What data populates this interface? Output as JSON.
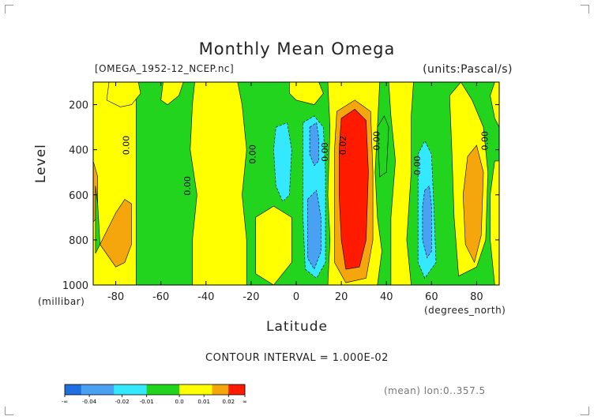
{
  "title": "Monthly Mean Omega",
  "file_label": "[OMEGA_1952-12_NCEP.nc]",
  "units_label": "(units:Pascal/s)",
  "contour_interval": "CONTOUR INTERVAL = 1.000E-02",
  "mean_note": "(mean) lon:0..357.5",
  "chart_data": {
    "type": "heatmap",
    "title": "Monthly Mean Omega",
    "xlabel": "Latitude",
    "xunit": "(degrees_north)",
    "ylabel": "Level",
    "yunit": "(millibar)",
    "xlim": [
      -90,
      90
    ],
    "ylim": [
      1000,
      100
    ],
    "x_ticks": [
      -80,
      -60,
      -40,
      -20,
      0,
      20,
      40,
      60,
      80
    ],
    "y_ticks": [
      200,
      400,
      600,
      800,
      1000
    ],
    "colors": {
      "c1": "#1f6fe0",
      "c2": "#4aa0f2",
      "c3": "#33e8ff",
      "c4": "#22d41e",
      "c5": "#ffff00",
      "c6": "#f5a60d",
      "c7": "#ff1a00"
    },
    "colorbar": {
      "tick_labels": [
        "-∞",
        "-0.04",
        "-0.02",
        "-0.01",
        "0.0",
        "0.01",
        "0.02",
        "∞"
      ],
      "bins": [
        "c1",
        "c2",
        "c2",
        "c3",
        "c3",
        "c4",
        "c4",
        "c5",
        "c5",
        "c6",
        "c7"
      ]
    },
    "contour_labels": [
      {
        "text": "0.00",
        "lat": -74,
        "level": 380
      },
      {
        "text": "0.00",
        "lat": -47,
        "level": 560
      },
      {
        "text": "0.00",
        "lat": -18,
        "level": 420
      },
      {
        "text": "0.00",
        "lat": 14,
        "level": 410
      },
      {
        "text": "0.02",
        "lat": 22,
        "level": 380
      },
      {
        "text": "0.00",
        "lat": 37,
        "level": 360
      },
      {
        "text": "0.00",
        "lat": 55,
        "level": 470
      },
      {
        "text": "0.00",
        "lat": 85,
        "level": 360
      }
    ],
    "regions": [
      {
        "color": "c4",
        "pts": [
          [
            -90,
            100
          ],
          [
            90,
            100
          ],
          [
            90,
            1000
          ],
          [
            -90,
            1000
          ]
        ]
      },
      {
        "color": "c5",
        "pts": [
          [
            -90,
            100
          ],
          [
            -71,
            100
          ],
          [
            -71,
            1000
          ],
          [
            -90,
            1000
          ]
        ]
      },
      {
        "color": "c5",
        "pts": [
          [
            -83,
            100
          ],
          [
            -70,
            100
          ],
          [
            -69,
            150
          ],
          [
            -73,
            200
          ],
          [
            -78,
            210
          ],
          [
            -84,
            180
          ]
        ]
      },
      {
        "color": "c6",
        "pts": [
          [
            -90,
            450
          ],
          [
            -88,
            520
          ],
          [
            -88,
            700
          ],
          [
            -90,
            720
          ]
        ]
      },
      {
        "color": "c6",
        "pts": [
          [
            -87,
            820
          ],
          [
            -80,
            680
          ],
          [
            -76,
            620
          ],
          [
            -73,
            640
          ],
          [
            -73,
            820
          ],
          [
            -76,
            900
          ],
          [
            -80,
            920
          ]
        ]
      },
      {
        "color": "c4",
        "pts": [
          [
            -89,
            560
          ],
          [
            -88,
            640
          ],
          [
            -87,
            820
          ],
          [
            -89,
            860
          ]
        ]
      },
      {
        "color": "c5",
        "pts": [
          [
            -59,
            100
          ],
          [
            -50,
            100
          ],
          [
            -52,
            160
          ],
          [
            -57,
            200
          ],
          [
            -60,
            180
          ]
        ]
      },
      {
        "color": "c5",
        "pts": [
          [
            -45,
            100
          ],
          [
            -26,
            100
          ],
          [
            -24,
            200
          ],
          [
            -22,
            400
          ],
          [
            -24,
            600
          ],
          [
            -22,
            800
          ],
          [
            -22,
            1000
          ],
          [
            -46,
            1000
          ],
          [
            -46,
            800
          ],
          [
            -44,
            600
          ],
          [
            -47,
            400
          ],
          [
            -46,
            200
          ]
        ]
      },
      {
        "color": "c5",
        "pts": [
          [
            -18,
            700
          ],
          [
            -10,
            650
          ],
          [
            -2,
            700
          ],
          [
            -2,
            900
          ],
          [
            -10,
            1000
          ],
          [
            -18,
            950
          ]
        ]
      },
      {
        "color": "c3",
        "pts": [
          [
            -9,
            300
          ],
          [
            -4,
            280
          ],
          [
            -2,
            400
          ],
          [
            -3,
            600
          ],
          [
            -6,
            630
          ],
          [
            -9,
            560
          ],
          [
            -10,
            400
          ]
        ]
      },
      {
        "color": "c5",
        "pts": [
          [
            -3,
            100
          ],
          [
            10,
            100
          ],
          [
            12,
            150
          ],
          [
            8,
            200
          ],
          [
            0,
            180
          ],
          [
            -3,
            150
          ]
        ]
      },
      {
        "color": "c3",
        "pts": [
          [
            3,
            280
          ],
          [
            8,
            250
          ],
          [
            12,
            300
          ],
          [
            13,
            500
          ],
          [
            13,
            700
          ],
          [
            13,
            900
          ],
          [
            9,
            970
          ],
          [
            4,
            930
          ],
          [
            3,
            700
          ],
          [
            3,
            500
          ]
        ]
      },
      {
        "color": "c2",
        "pts": [
          [
            6,
            300
          ],
          [
            9,
            280
          ],
          [
            10,
            350
          ],
          [
            10,
            450
          ],
          [
            8,
            470
          ],
          [
            6,
            420
          ]
        ]
      },
      {
        "color": "c2",
        "pts": [
          [
            5,
            620
          ],
          [
            9,
            580
          ],
          [
            11,
            700
          ],
          [
            11,
            850
          ],
          [
            8,
            930
          ],
          [
            5,
            880
          ]
        ]
      },
      {
        "color": "c5",
        "pts": [
          [
            14,
            100
          ],
          [
            37,
            100
          ],
          [
            36,
            300
          ],
          [
            35,
            500
          ],
          [
            36,
            700
          ],
          [
            38,
            850
          ],
          [
            36,
            1000
          ],
          [
            14,
            1000
          ],
          [
            15,
            800
          ],
          [
            14,
            600
          ],
          [
            15,
            300
          ]
        ]
      },
      {
        "color": "c6",
        "pts": [
          [
            18,
            230
          ],
          [
            26,
            180
          ],
          [
            33,
            230
          ],
          [
            34,
            500
          ],
          [
            34,
            800
          ],
          [
            31,
            970
          ],
          [
            22,
            990
          ],
          [
            17,
            900
          ],
          [
            17,
            600
          ],
          [
            17,
            400
          ]
        ]
      },
      {
        "color": "c7",
        "pts": [
          [
            20,
            260
          ],
          [
            26,
            220
          ],
          [
            31,
            270
          ],
          [
            32,
            500
          ],
          [
            31,
            800
          ],
          [
            28,
            920
          ],
          [
            22,
            930
          ],
          [
            20,
            800
          ],
          [
            19,
            600
          ],
          [
            19,
            400
          ]
        ]
      },
      {
        "color": "c4",
        "pts": [
          [
            36,
            300
          ],
          [
            39,
            250
          ],
          [
            41,
            300
          ],
          [
            40,
            500
          ],
          [
            37,
            520
          ]
        ]
      },
      {
        "color": "c5",
        "pts": [
          [
            41,
            100
          ],
          [
            52,
            100
          ],
          [
            51,
            250
          ],
          [
            51,
            500
          ],
          [
            49,
            800
          ],
          [
            51,
            1000
          ],
          [
            42,
            1000
          ],
          [
            42,
            700
          ],
          [
            44,
            450
          ],
          [
            42,
            250
          ]
        ]
      },
      {
        "color": "c3",
        "pts": [
          [
            54,
            420
          ],
          [
            57,
            360
          ],
          [
            60,
            420
          ],
          [
            61,
            650
          ],
          [
            62,
            900
          ],
          [
            57,
            970
          ],
          [
            54,
            900
          ],
          [
            54,
            650
          ]
        ]
      },
      {
        "color": "c2",
        "pts": [
          [
            57,
            580
          ],
          [
            59,
            560
          ],
          [
            60,
            650
          ],
          [
            60,
            850
          ],
          [
            58,
            880
          ],
          [
            56,
            800
          ],
          [
            56,
            650
          ]
        ]
      },
      {
        "color": "c5",
        "pts": [
          [
            73,
            100
          ],
          [
            78,
            180
          ],
          [
            83,
            300
          ],
          [
            85,
            500
          ],
          [
            84,
            800
          ],
          [
            80,
            920
          ],
          [
            72,
            960
          ],
          [
            70,
            700
          ],
          [
            69,
            400
          ],
          [
            68,
            160
          ]
        ]
      },
      {
        "color": "c6",
        "pts": [
          [
            76,
            430
          ],
          [
            80,
            380
          ],
          [
            83,
            500
          ],
          [
            82,
            780
          ],
          [
            79,
            900
          ],
          [
            75,
            820
          ],
          [
            74,
            600
          ]
        ]
      },
      {
        "color": "c5",
        "pts": [
          [
            88,
            100
          ],
          [
            90,
            100
          ],
          [
            90,
            300
          ],
          [
            88,
            260
          ],
          [
            86,
            160
          ]
        ]
      },
      {
        "color": "c5",
        "pts": [
          [
            88,
            450
          ],
          [
            90,
            450
          ],
          [
            90,
            1000
          ],
          [
            88,
            1000
          ],
          [
            86,
            800
          ],
          [
            86,
            600
          ]
        ]
      }
    ]
  }
}
